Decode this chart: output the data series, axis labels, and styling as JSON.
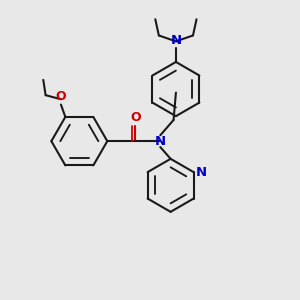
{
  "bg_color": "#e8e8e8",
  "bond_color": "#1a1a1a",
  "N_color": "#0000cc",
  "O_color": "#cc0000",
  "line_width": 1.5,
  "figsize": [
    3.0,
    3.0
  ],
  "dpi": 100,
  "xlim": [
    0,
    10
  ],
  "ylim": [
    0,
    10
  ]
}
